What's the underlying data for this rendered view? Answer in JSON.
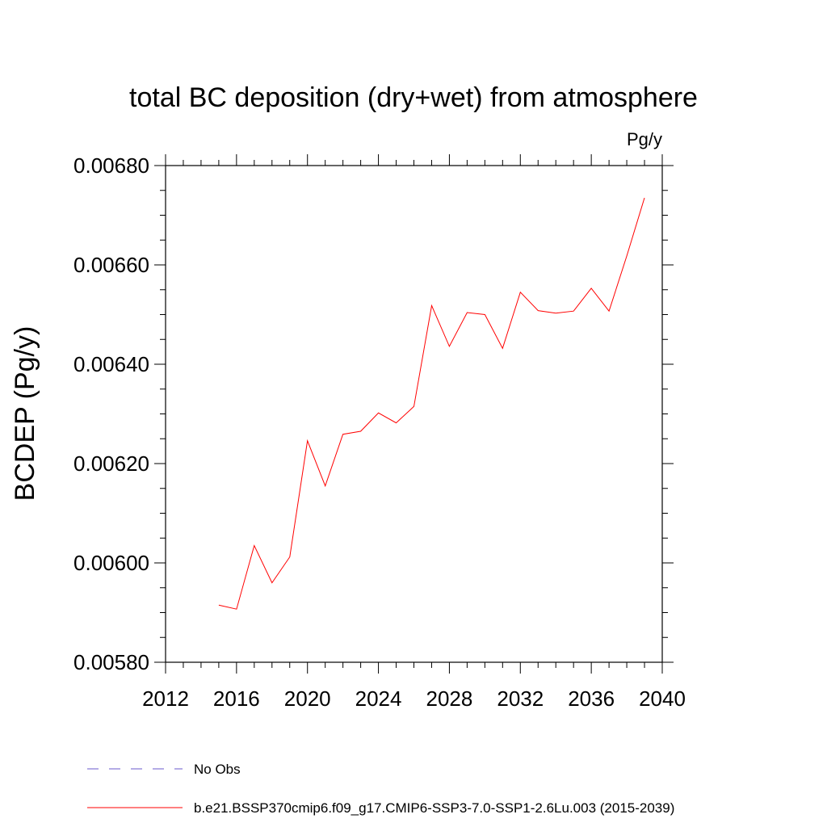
{
  "chart_data": {
    "type": "line",
    "title": "total BC deposition (dry+wet) from atmosphere",
    "units_label": "Pg/y",
    "xlabel": "",
    "ylabel": "BCDEP  (Pg/y)",
    "xlim": [
      2012,
      2040
    ],
    "ylim": [
      0.0058,
      0.0068
    ],
    "x_ticks": [
      2012,
      2016,
      2020,
      2024,
      2028,
      2032,
      2036,
      2040
    ],
    "x_tick_labels": [
      "2012",
      "2016",
      "2020",
      "2024",
      "2028",
      "2032",
      "2036",
      "2040"
    ],
    "y_ticks": [
      0.0058,
      0.006,
      0.0062,
      0.0064,
      0.0066,
      0.0068
    ],
    "y_tick_labels": [
      "0.00580",
      "0.00600",
      "0.00620",
      "0.00640",
      "0.00660",
      "0.00680"
    ],
    "grid": false,
    "series": [
      {
        "name": "b.e21.BSSP370cmip6.f09_g17.CMIP6-SSP3-7.0-SSP1-2.6Lu.003 (2015-2039)",
        "color": "#ff0000",
        "style": "solid",
        "x": [
          2015,
          2016,
          2017,
          2018,
          2019,
          2020,
          2021,
          2022,
          2023,
          2024,
          2025,
          2026,
          2027,
          2028,
          2029,
          2030,
          2031,
          2032,
          2033,
          2034,
          2035,
          2036,
          2037,
          2038,
          2039
        ],
        "values": [
          0.005915,
          0.005907,
          0.006035,
          0.00596,
          0.006012,
          0.006246,
          0.006155,
          0.006259,
          0.006265,
          0.006302,
          0.006282,
          0.006315,
          0.006518,
          0.006436,
          0.006504,
          0.0065,
          0.006432,
          0.006545,
          0.006508,
          0.006503,
          0.006507,
          0.006553,
          0.006507,
          0.006618,
          0.006735
        ]
      }
    ],
    "legend": [
      {
        "label": "No Obs",
        "color": "#6a5acd",
        "style": "dashed"
      },
      {
        "label": "b.e21.BSSP370cmip6.f09_g17.CMIP6-SSP3-7.0-SSP1-2.6Lu.003 (2015-2039)",
        "color": "#ff0000",
        "style": "solid"
      }
    ],
    "legend_position": "bottom-left"
  }
}
